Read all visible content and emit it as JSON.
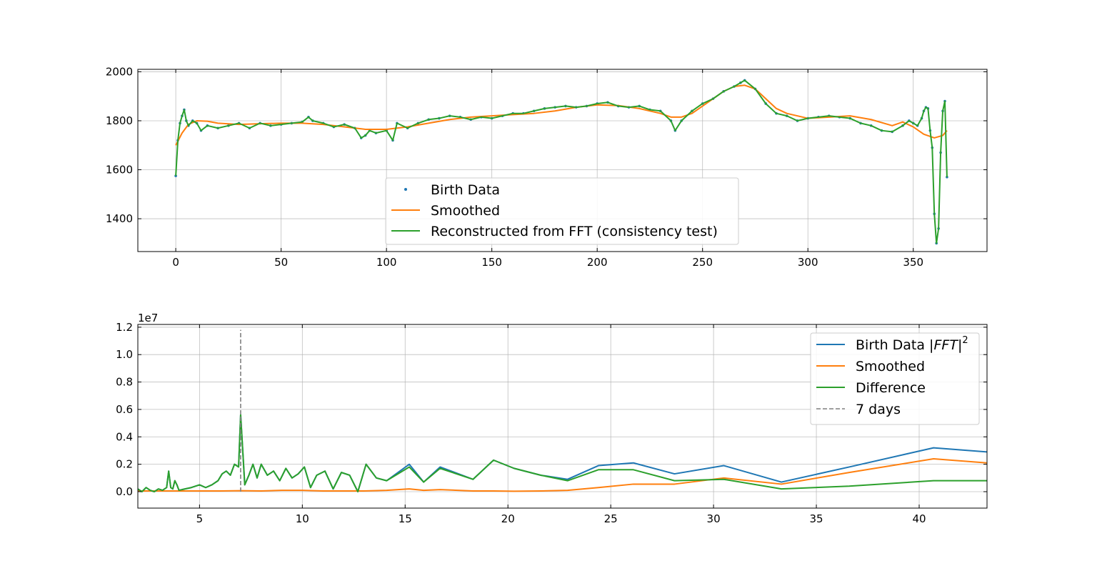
{
  "chart_data": [
    {
      "type": "line",
      "title": "",
      "xlabel": "",
      "ylabel": "",
      "xlim": [
        -18,
        385
      ],
      "ylim": [
        1266,
        2010
      ],
      "xticks": [
        0,
        50,
        100,
        150,
        200,
        250,
        300,
        350
      ],
      "yticks": [
        1400,
        1600,
        1800,
        2000
      ],
      "xtick_labels": [
        "0",
        "50",
        "100",
        "150",
        "200",
        "250",
        "300",
        "350"
      ],
      "ytick_labels": [
        "1400",
        "1600",
        "1800",
        "2000"
      ],
      "grid": true,
      "legend_position": "lower-center",
      "series": [
        {
          "name": "Birth Data",
          "style": "points",
          "color": "#1f77b4",
          "x": [
            0,
            1,
            2,
            3,
            4,
            5,
            6,
            8,
            10,
            12,
            15,
            20,
            25,
            30,
            35,
            40,
            45,
            50,
            55,
            60,
            63,
            65,
            70,
            75,
            80,
            85,
            88,
            90,
            92,
            95,
            100,
            103,
            105,
            110,
            115,
            120,
            125,
            130,
            135,
            140,
            145,
            150,
            155,
            160,
            165,
            170,
            175,
            180,
            185,
            190,
            195,
            200,
            205,
            210,
            215,
            220,
            225,
            230,
            235,
            237,
            240,
            245,
            250,
            255,
            260,
            265,
            268,
            270,
            275,
            280,
            285,
            290,
            295,
            300,
            305,
            310,
            315,
            320,
            325,
            330,
            335,
            340,
            345,
            348,
            350,
            352,
            354,
            355,
            356,
            357,
            358,
            359,
            360,
            361,
            362,
            363,
            364,
            365,
            366
          ],
          "y": [
            1575,
            1720,
            1790,
            1820,
            1845,
            1800,
            1780,
            1800,
            1790,
            1760,
            1780,
            1770,
            1780,
            1790,
            1770,
            1790,
            1780,
            1785,
            1790,
            1795,
            1815,
            1800,
            1790,
            1775,
            1785,
            1770,
            1730,
            1740,
            1760,
            1750,
            1760,
            1720,
            1790,
            1770,
            1790,
            1805,
            1810,
            1820,
            1815,
            1805,
            1815,
            1810,
            1820,
            1830,
            1830,
            1840,
            1850,
            1855,
            1860,
            1855,
            1860,
            1870,
            1875,
            1860,
            1855,
            1860,
            1845,
            1840,
            1800,
            1760,
            1800,
            1840,
            1870,
            1890,
            1920,
            1940,
            1955,
            1965,
            1930,
            1870,
            1830,
            1820,
            1800,
            1810,
            1815,
            1820,
            1815,
            1810,
            1790,
            1780,
            1760,
            1755,
            1780,
            1800,
            1790,
            1780,
            1810,
            1840,
            1855,
            1850,
            1760,
            1690,
            1420,
            1300,
            1360,
            1670,
            1840,
            1880,
            1570
          ]
        },
        {
          "name": "Smoothed",
          "style": "line",
          "color": "#ff7f0e",
          "x": [
            0,
            3,
            6,
            10,
            15,
            20,
            30,
            40,
            50,
            60,
            70,
            80,
            90,
            100,
            110,
            120,
            130,
            140,
            150,
            160,
            170,
            180,
            190,
            200,
            210,
            220,
            230,
            235,
            240,
            245,
            250,
            255,
            260,
            265,
            270,
            275,
            280,
            285,
            290,
            300,
            310,
            320,
            330,
            340,
            345,
            350,
            355,
            360,
            364,
            366
          ],
          "y": [
            1700,
            1750,
            1785,
            1800,
            1798,
            1790,
            1785,
            1788,
            1790,
            1790,
            1785,
            1775,
            1765,
            1765,
            1775,
            1790,
            1805,
            1815,
            1820,
            1825,
            1830,
            1840,
            1855,
            1865,
            1862,
            1850,
            1830,
            1815,
            1815,
            1830,
            1860,
            1890,
            1920,
            1940,
            1945,
            1930,
            1890,
            1850,
            1830,
            1810,
            1815,
            1820,
            1805,
            1780,
            1795,
            1775,
            1745,
            1730,
            1740,
            1760
          ]
        },
        {
          "name": "Reconstructed from FFT (consistency test)",
          "style": "line",
          "color": "#2ca02c",
          "x": [
            0,
            1,
            2,
            3,
            4,
            5,
            6,
            8,
            10,
            12,
            15,
            20,
            25,
            30,
            35,
            40,
            45,
            50,
            55,
            60,
            63,
            65,
            70,
            75,
            80,
            85,
            88,
            90,
            92,
            95,
            100,
            103,
            105,
            110,
            115,
            120,
            125,
            130,
            135,
            140,
            145,
            150,
            155,
            160,
            165,
            170,
            175,
            180,
            185,
            190,
            195,
            200,
            205,
            210,
            215,
            220,
            225,
            230,
            235,
            237,
            240,
            245,
            250,
            255,
            260,
            265,
            268,
            270,
            275,
            280,
            285,
            290,
            295,
            300,
            305,
            310,
            315,
            320,
            325,
            330,
            335,
            340,
            345,
            348,
            350,
            352,
            354,
            355,
            356,
            357,
            358,
            359,
            360,
            361,
            362,
            363,
            364,
            365,
            366
          ],
          "y": [
            1575,
            1720,
            1790,
            1820,
            1845,
            1800,
            1780,
            1800,
            1790,
            1760,
            1780,
            1770,
            1780,
            1790,
            1770,
            1790,
            1780,
            1785,
            1790,
            1795,
            1815,
            1800,
            1790,
            1775,
            1785,
            1770,
            1730,
            1740,
            1760,
            1750,
            1760,
            1720,
            1790,
            1770,
            1790,
            1805,
            1810,
            1820,
            1815,
            1805,
            1815,
            1810,
            1820,
            1830,
            1830,
            1840,
            1850,
            1855,
            1860,
            1855,
            1860,
            1870,
            1875,
            1860,
            1855,
            1860,
            1845,
            1840,
            1800,
            1760,
            1800,
            1840,
            1870,
            1890,
            1920,
            1940,
            1955,
            1965,
            1930,
            1870,
            1830,
            1820,
            1800,
            1810,
            1815,
            1820,
            1815,
            1810,
            1790,
            1780,
            1760,
            1755,
            1780,
            1800,
            1790,
            1780,
            1810,
            1840,
            1855,
            1850,
            1760,
            1690,
            1420,
            1300,
            1360,
            1670,
            1840,
            1880,
            1570
          ]
        }
      ]
    },
    {
      "type": "line",
      "title": "",
      "xlabel": "",
      "ylabel": "",
      "y_offset_label": "1e7",
      "xlim": [
        2.0,
        43.3
      ],
      "ylim": [
        -0.12,
        1.22
      ],
      "xticks": [
        5,
        10,
        15,
        20,
        25,
        30,
        35,
        40
      ],
      "yticks": [
        0.0,
        0.2,
        0.4,
        0.6,
        0.8,
        1.0,
        1.2
      ],
      "xtick_labels": [
        "5",
        "10",
        "15",
        "20",
        "25",
        "30",
        "35",
        "40"
      ],
      "ytick_labels": [
        "0.0",
        "0.2",
        "0.4",
        "0.6",
        "0.8",
        "1.0",
        "1.2"
      ],
      "grid": true,
      "legend_position": "upper-right",
      "series": [
        {
          "name": "Birth Data |FFT|²",
          "legend_parts": [
            "Birth Data |",
            "FFT",
            "|",
            "2"
          ],
          "style": "line",
          "color": "#1f77b4",
          "x": [
            2.0,
            2.2,
            2.4,
            2.6,
            2.8,
            3.0,
            3.2,
            3.4,
            3.5,
            3.6,
            3.7,
            3.8,
            3.9,
            4.0,
            4.3,
            4.6,
            5.0,
            5.3,
            5.6,
            5.9,
            6.1,
            6.3,
            6.5,
            6.7,
            6.9,
            7.0,
            7.2,
            7.4,
            7.6,
            7.8,
            8.0,
            8.3,
            8.6,
            8.9,
            9.2,
            9.5,
            9.8,
            10.1,
            10.4,
            10.7,
            11.1,
            11.5,
            11.9,
            12.3,
            12.7,
            13.1,
            13.6,
            14.1,
            15.2,
            15.9,
            16.7,
            18.3,
            19.3,
            20.3,
            21.6,
            22.9,
            24.4,
            26.1,
            28.1,
            30.5,
            33.3,
            36.6,
            40.7,
            43.3
          ],
          "y": [
            0.02,
            0.0,
            0.03,
            0.01,
            0.0,
            0.02,
            0.01,
            0.03,
            0.15,
            0.03,
            0.02,
            0.08,
            0.05,
            0.01,
            0.02,
            0.03,
            0.05,
            0.03,
            0.05,
            0.08,
            0.13,
            0.15,
            0.12,
            0.2,
            0.18,
            0.56,
            0.05,
            0.12,
            0.2,
            0.1,
            0.2,
            0.12,
            0.15,
            0.08,
            0.17,
            0.1,
            0.13,
            0.18,
            0.03,
            0.12,
            0.15,
            0.02,
            0.14,
            0.12,
            0.0,
            0.2,
            0.1,
            0.08,
            0.2,
            0.07,
            0.18,
            0.09,
            0.23,
            0.17,
            0.12,
            0.09,
            0.19,
            0.21,
            0.13,
            0.19,
            0.07,
            0.18,
            0.32,
            0.29
          ]
        },
        {
          "name": "Smoothed",
          "style": "line",
          "color": "#ff7f0e",
          "x": [
            2.0,
            3.0,
            4.0,
            5.0,
            6.0,
            7.0,
            8.0,
            9.0,
            10.0,
            11.0,
            12.0,
            13.0,
            14.1,
            15.2,
            15.9,
            16.7,
            18.3,
            19.3,
            20.3,
            21.6,
            22.9,
            24.4,
            26.1,
            28.1,
            30.5,
            33.3,
            36.6,
            40.7,
            43.3
          ],
          "y": [
            0.005,
            0.005,
            0.005,
            0.005,
            0.005,
            0.007,
            0.005,
            0.01,
            0.01,
            0.005,
            0.005,
            0.005,
            0.01,
            0.02,
            0.01,
            0.015,
            0.005,
            0.005,
            0.003,
            0.005,
            0.01,
            0.03,
            0.055,
            0.055,
            0.1,
            0.055,
            0.14,
            0.24,
            0.21
          ]
        },
        {
          "name": "Difference",
          "style": "line",
          "color": "#2ca02c",
          "x": [
            2.0,
            2.2,
            2.4,
            2.6,
            2.8,
            3.0,
            3.2,
            3.4,
            3.5,
            3.6,
            3.7,
            3.8,
            3.9,
            4.0,
            4.3,
            4.6,
            5.0,
            5.3,
            5.6,
            5.9,
            6.1,
            6.3,
            6.5,
            6.7,
            6.9,
            7.0,
            7.2,
            7.4,
            7.6,
            7.8,
            8.0,
            8.3,
            8.6,
            8.9,
            9.2,
            9.5,
            9.8,
            10.1,
            10.4,
            10.7,
            11.1,
            11.5,
            11.9,
            12.3,
            12.7,
            13.1,
            13.6,
            14.1,
            15.2,
            15.9,
            16.7,
            18.3,
            19.3,
            20.3,
            21.6,
            22.9,
            24.4,
            26.1,
            28.1,
            30.5,
            33.3,
            36.6,
            40.7,
            43.3
          ],
          "y": [
            0.02,
            0.0,
            0.03,
            0.01,
            0.0,
            0.02,
            0.01,
            0.03,
            0.15,
            0.03,
            0.02,
            0.08,
            0.05,
            0.01,
            0.02,
            0.03,
            0.05,
            0.03,
            0.05,
            0.08,
            0.13,
            0.15,
            0.12,
            0.2,
            0.18,
            0.56,
            0.05,
            0.12,
            0.2,
            0.1,
            0.2,
            0.12,
            0.15,
            0.08,
            0.17,
            0.1,
            0.13,
            0.18,
            0.03,
            0.12,
            0.15,
            0.02,
            0.14,
            0.12,
            0.0,
            0.2,
            0.1,
            0.08,
            0.18,
            0.07,
            0.17,
            0.09,
            0.23,
            0.17,
            0.12,
            0.08,
            0.16,
            0.16,
            0.08,
            0.09,
            0.02,
            0.04,
            0.08,
            0.08
          ]
        },
        {
          "name": "7 days",
          "style": "dashed-vline",
          "color": "#808080",
          "x": 7,
          "y_range": [
            0.0,
            1.18
          ]
        }
      ]
    }
  ]
}
